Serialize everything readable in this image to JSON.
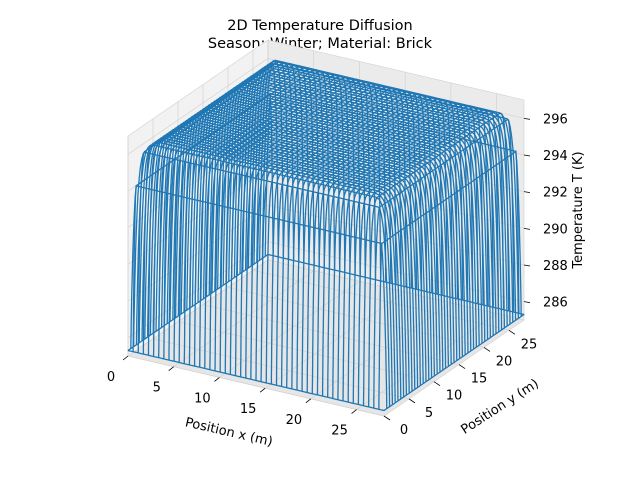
{
  "chart_data": {
    "type": "wireframe-3d",
    "title": "2D Temperature Diffusion",
    "subtitle": "Season: Winter; Material: Brick",
    "xlabel": "Position x (m)",
    "ylabel": "Position y (m)",
    "zlabel": "Temperature T (K)",
    "xticks": [
      0,
      5,
      10,
      15,
      20,
      25
    ],
    "yticks": [
      0,
      5,
      10,
      15,
      20,
      25
    ],
    "zticks": [
      286,
      288,
      290,
      292,
      294,
      296
    ],
    "xlim": [
      0,
      28
    ],
    "ylim": [
      0,
      28
    ],
    "zlim": [
      285,
      297
    ],
    "surface": {
      "plateau_temperature": 296.5,
      "boundary_temperature": 285.3,
      "grid_extent": [
        0,
        28
      ],
      "grid_lines": 50
    },
    "series_color": "#1f77b4",
    "grid": true
  }
}
